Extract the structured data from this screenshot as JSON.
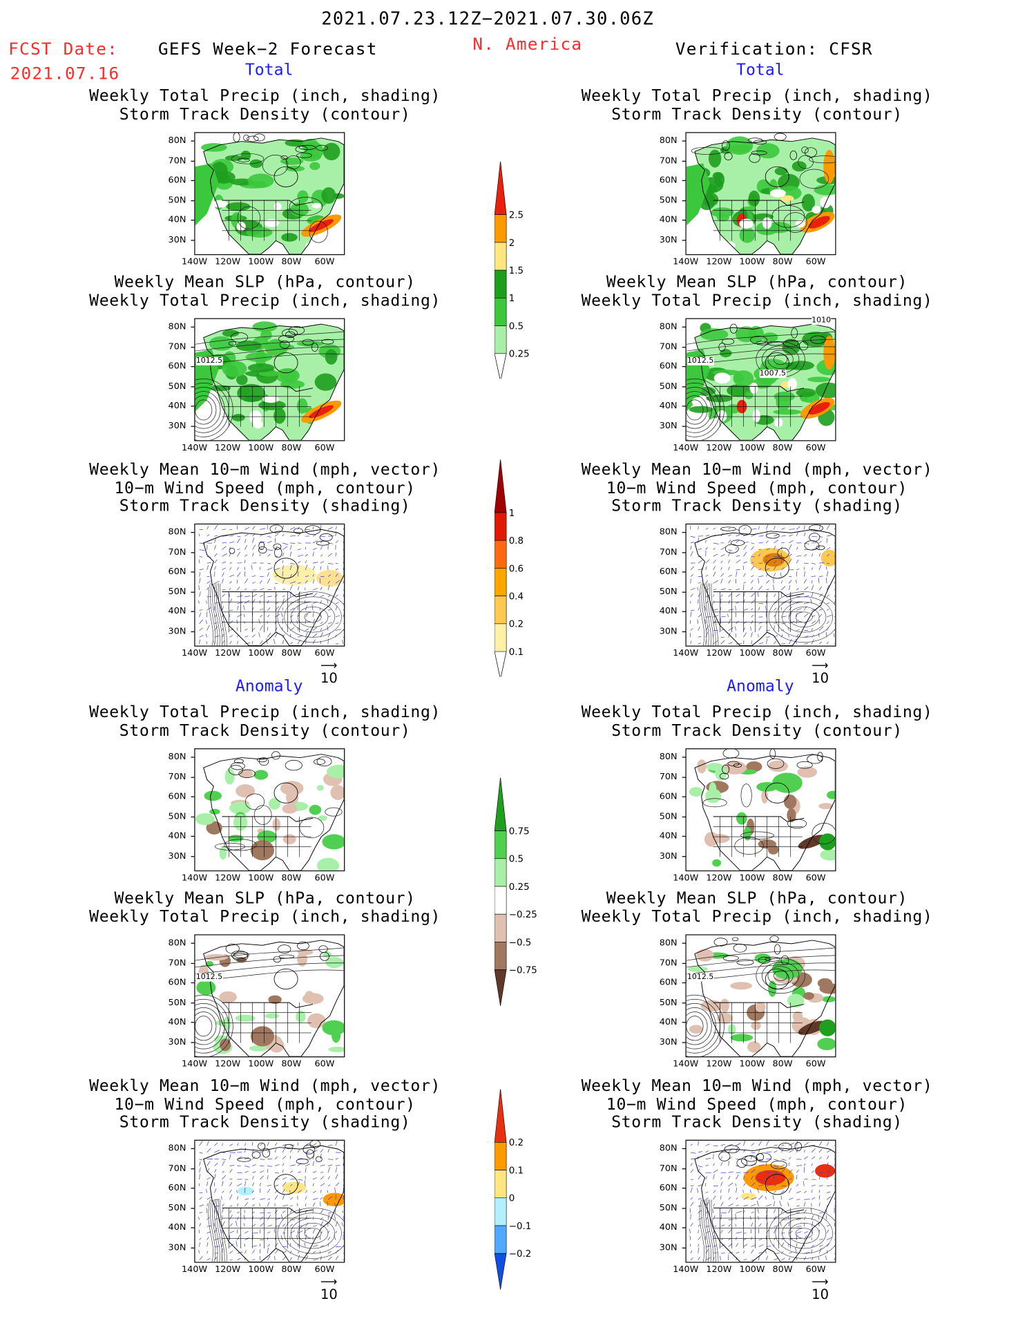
{
  "header": {
    "date_range": "2021.07.23.12Z−2021.07.30.06Z",
    "fcst_label": "FCST Date:",
    "fcst_date": "2021.07.16",
    "left_title": "GEFS Week−2 Forecast",
    "region": "N. America",
    "right_title": "Verification: CFSR"
  },
  "sections": {
    "total": "Total",
    "anomaly": "Anomaly"
  },
  "panel_titles": {
    "precip_track": [
      "Weekly Total Precip (inch, shading)",
      "Storm Track Density (contour)"
    ],
    "slp_precip": [
      "Weekly Mean SLP (hPa, contour)",
      "Weekly Total Precip (inch, shading)"
    ],
    "wind_track": [
      "Weekly Mean 10−m Wind (mph, vector)",
      "10−m Wind Speed (mph, contour)",
      "Storm Track Density (shading)"
    ]
  },
  "axes": {
    "lat_labels": [
      "80N",
      "70N",
      "60N",
      "50N",
      "40N",
      "30N"
    ],
    "lon_labels": [
      "140W",
      "120W",
      "100W",
      "80W",
      "60W"
    ]
  },
  "vector_ref": "10",
  "contour_labels": {
    "slp_left": "1012.5",
    "slp_right_a": "1012.5",
    "slp_right_b": "1007.5",
    "slp_right_c": "1010"
  },
  "colorbars": {
    "precip_total": {
      "labels": [
        "2.5",
        "2",
        "1.5",
        "1",
        "0.5",
        "0.25"
      ],
      "colors": [
        "#e8200c",
        "#ff9900",
        "#ffe680",
        "#1e9e1e",
        "#3cc83c",
        "#a8f0a8"
      ]
    },
    "track_total": {
      "labels": [
        "1",
        "0.8",
        "0.6",
        "0.4",
        "0.2",
        "0.1"
      ],
      "colors": [
        "#a00000",
        "#e01a00",
        "#ff6a10",
        "#ffa500",
        "#ffc850",
        "#fff0a8"
      ]
    },
    "precip_anom": {
      "labels": [
        "0.75",
        "0.5",
        "0.25",
        "−0.25",
        "−0.5",
        "−0.75"
      ],
      "colors": [
        "#1ea01e",
        "#50d050",
        "#a8f0a8",
        "#ffffff",
        "#e0c0b0",
        "#a07860",
        "#603828"
      ]
    },
    "track_anom": {
      "labels": [
        "0.2",
        "0.1",
        "0",
        "−0.1",
        "−0.2"
      ],
      "colors": [
        "#e83010",
        "#ff9900",
        "#ffe680",
        "#b0f0ff",
        "#50a8ff",
        "#1050e0"
      ]
    }
  }
}
